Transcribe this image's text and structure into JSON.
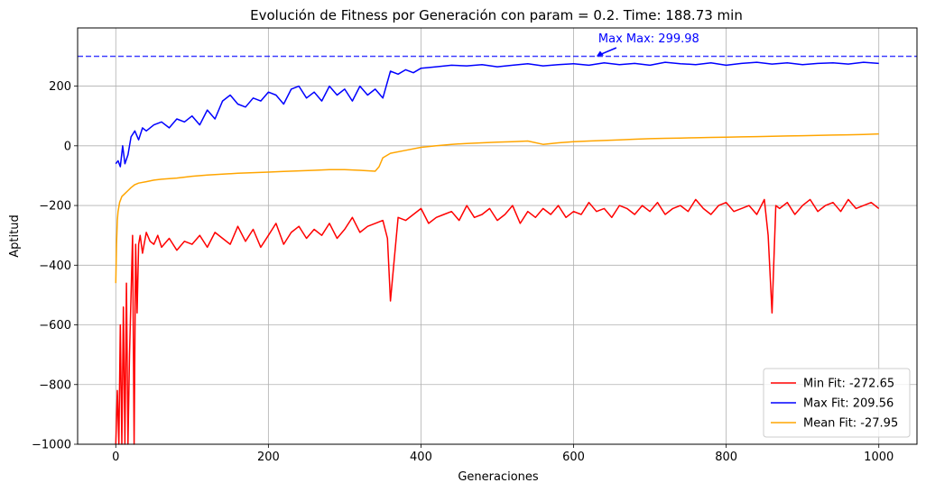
{
  "chart_data": {
    "type": "line",
    "title": "Evolución de Fitness por Generación con param = 0.2. Time: 188.73 min",
    "xlabel": "Generaciones",
    "ylabel": "Aptitud",
    "xlim": [
      -50,
      1050
    ],
    "ylim": [
      -1000,
      395
    ],
    "xticks": [
      0,
      200,
      400,
      600,
      800,
      1000
    ],
    "yticks": [
      -1000,
      -800,
      -600,
      -400,
      -200,
      0,
      200
    ],
    "x_tick_labels": [
      "0",
      "200",
      "400",
      "600",
      "800",
      "1000"
    ],
    "y_tick_labels": [
      "−1000",
      "−800",
      "−600",
      "−400",
      "−200",
      "0",
      "200"
    ],
    "grid": true,
    "legend_position": "lower-right",
    "reference_line": {
      "y": 299.98,
      "color": "#0000ff",
      "style": "dashed"
    },
    "annotation": {
      "text": "Max Max: 299.98",
      "x": 630,
      "y": 299.98,
      "color": "#0000ff"
    },
    "series": [
      {
        "name": "Min Fit: -272.65",
        "color": "#ff0000",
        "x": [
          0,
          2,
          4,
          6,
          8,
          10,
          12,
          14,
          16,
          18,
          20,
          22,
          24,
          26,
          28,
          30,
          32,
          35,
          40,
          45,
          50,
          55,
          60,
          70,
          80,
          90,
          100,
          110,
          120,
          130,
          140,
          150,
          160,
          170,
          180,
          190,
          200,
          210,
          220,
          230,
          240,
          250,
          260,
          270,
          280,
          290,
          300,
          310,
          320,
          330,
          340,
          350,
          356,
          360,
          370,
          380,
          390,
          400,
          410,
          420,
          430,
          440,
          450,
          460,
          470,
          480,
          490,
          500,
          510,
          520,
          530,
          540,
          550,
          560,
          570,
          580,
          590,
          600,
          610,
          620,
          630,
          640,
          650,
          660,
          670,
          680,
          690,
          700,
          710,
          720,
          730,
          740,
          750,
          760,
          770,
          780,
          790,
          800,
          810,
          820,
          830,
          840,
          850,
          855,
          860,
          865,
          870,
          880,
          890,
          900,
          910,
          920,
          930,
          940,
          950,
          960,
          970,
          980,
          990,
          1000
        ],
        "y": [
          -1000,
          -820,
          -1000,
          -600,
          -1000,
          -540,
          -1000,
          -460,
          -1000,
          -700,
          -500,
          -300,
          -1000,
          -330,
          -560,
          -330,
          -300,
          -360,
          -290,
          -320,
          -330,
          -300,
          -340,
          -310,
          -350,
          -320,
          -330,
          -300,
          -340,
          -290,
          -310,
          -330,
          -270,
          -320,
          -280,
          -340,
          -300,
          -260,
          -330,
          -290,
          -270,
          -310,
          -280,
          -300,
          -260,
          -310,
          -280,
          -240,
          -290,
          -270,
          -260,
          -250,
          -310,
          -520,
          -240,
          -250,
          -230,
          -210,
          -260,
          -240,
          -230,
          -220,
          -250,
          -200,
          -240,
          -230,
          -210,
          -250,
          -230,
          -200,
          -260,
          -220,
          -240,
          -210,
          -230,
          -200,
          -240,
          -220,
          -230,
          -190,
          -220,
          -210,
          -240,
          -200,
          -210,
          -230,
          -200,
          -220,
          -190,
          -230,
          -210,
          -200,
          -220,
          -180,
          -210,
          -230,
          -200,
          -190,
          -220,
          -210,
          -200,
          -230,
          -180,
          -300,
          -560,
          -200,
          -210,
          -190,
          -230,
          -200,
          -180,
          -220,
          -200,
          -190,
          -220,
          -180,
          -210,
          -200,
          -190,
          -210
        ]
      },
      {
        "name": "Max Fit: 209.56",
        "color": "#0000ff",
        "x": [
          0,
          3,
          6,
          9,
          12,
          16,
          20,
          25,
          30,
          35,
          40,
          50,
          60,
          70,
          80,
          90,
          100,
          110,
          120,
          130,
          140,
          150,
          160,
          170,
          180,
          190,
          200,
          210,
          220,
          230,
          240,
          250,
          260,
          270,
          280,
          290,
          300,
          310,
          320,
          330,
          340,
          350,
          360,
          370,
          380,
          390,
          400,
          420,
          440,
          460,
          480,
          500,
          520,
          540,
          560,
          580,
          600,
          620,
          640,
          660,
          680,
          700,
          720,
          740,
          760,
          780,
          800,
          820,
          840,
          860,
          880,
          900,
          920,
          940,
          960,
          980,
          1000
        ],
        "y": [
          -60,
          -50,
          -70,
          0,
          -60,
          -30,
          30,
          50,
          20,
          60,
          50,
          70,
          80,
          60,
          90,
          80,
          100,
          70,
          120,
          90,
          150,
          170,
          140,
          130,
          160,
          150,
          180,
          170,
          140,
          190,
          200,
          160,
          180,
          150,
          200,
          170,
          190,
          150,
          200,
          170,
          190,
          160,
          250,
          240,
          255,
          245,
          260,
          265,
          270,
          268,
          272,
          265,
          270,
          275,
          268,
          272,
          275,
          270,
          278,
          272,
          276,
          270,
          280,
          275,
          272,
          278,
          270,
          276,
          280,
          274,
          278,
          272,
          276,
          278,
          274,
          280,
          276
        ]
      },
      {
        "name": "Mean Fit: -27.95",
        "color": "#ffa500",
        "x": [
          0,
          1,
          2,
          3,
          5,
          8,
          12,
          16,
          20,
          25,
          30,
          40,
          50,
          60,
          70,
          80,
          90,
          100,
          120,
          140,
          160,
          180,
          200,
          220,
          240,
          260,
          280,
          300,
          320,
          340,
          345,
          350,
          360,
          380,
          400,
          420,
          440,
          460,
          480,
          500,
          520,
          540,
          560,
          580,
          600,
          620,
          640,
          660,
          680,
          700,
          720,
          740,
          760,
          780,
          800,
          820,
          840,
          860,
          880,
          900,
          920,
          940,
          960,
          980,
          1000
        ],
        "y": [
          -460,
          -330,
          -250,
          -220,
          -190,
          -170,
          -160,
          -150,
          -140,
          -130,
          -125,
          -120,
          -115,
          -112,
          -110,
          -108,
          -105,
          -102,
          -98,
          -95,
          -92,
          -90,
          -88,
          -86,
          -84,
          -82,
          -80,
          -80,
          -82,
          -85,
          -70,
          -40,
          -25,
          -15,
          -5,
          0,
          5,
          8,
          10,
          12,
          14,
          16,
          5,
          10,
          14,
          16,
          18,
          20,
          22,
          24,
          25,
          26,
          27,
          28,
          29,
          30,
          31,
          32,
          33,
          34,
          35,
          36,
          37,
          38,
          40
        ]
      }
    ]
  }
}
